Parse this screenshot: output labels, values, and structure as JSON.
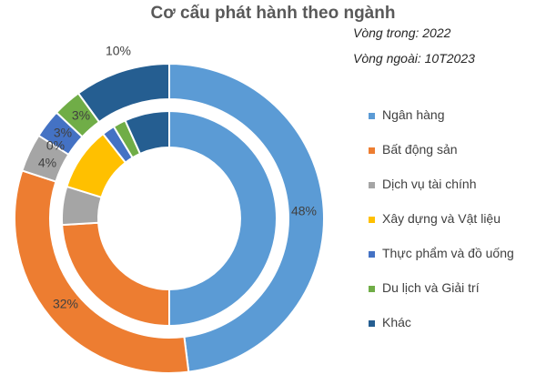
{
  "title": "Cơ cấu phát hành theo ngành",
  "rings": {
    "inner_label": "Vòng trong: 2022",
    "outer_label": "Vòng ngoài: 10T2023"
  },
  "chart_data": {
    "type": "donut",
    "title": "Cơ cấu phát hành theo ngành",
    "categories": [
      "Ngân hàng",
      "Bất động sản",
      "Dịch vụ tài chính",
      "Xây dựng và Vật liệu",
      "Thực phẩm và đồ uống",
      "Du lịch và Giải trí",
      "Khác"
    ],
    "colors": [
      "#5b9bd5",
      "#ed7d31",
      "#a5a5a5",
      "#ffc000",
      "#4472c4",
      "#70ad47",
      "#255e91"
    ],
    "series": [
      {
        "name": "2022",
        "ring": "inner",
        "values": [
          52,
          25,
          6,
          10,
          2,
          2,
          7
        ]
      },
      {
        "name": "10T2023",
        "ring": "outer",
        "values": [
          48,
          32,
          4,
          0,
          3,
          3,
          10
        ],
        "labels": [
          "48%",
          "32%",
          "4%",
          "0%",
          "3%",
          "3%",
          "10%"
        ]
      }
    ],
    "legend": "right",
    "start": "top",
    "direction": "clockwise"
  }
}
